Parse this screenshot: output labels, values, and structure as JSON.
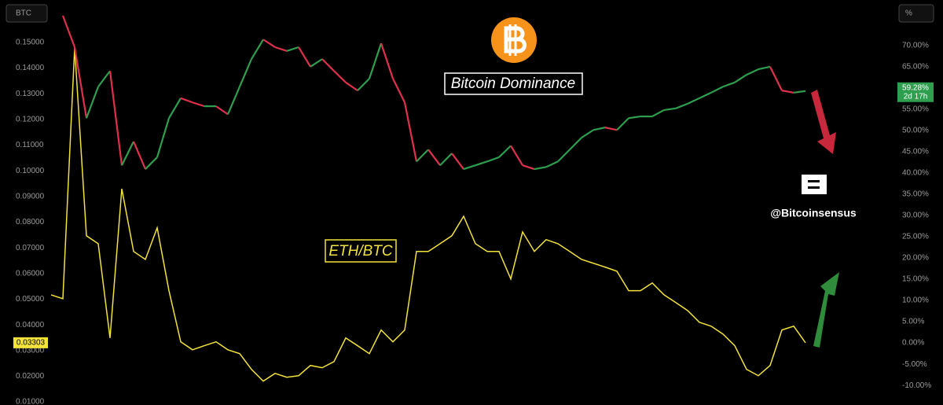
{
  "chart_data": {
    "type": "line",
    "y_unit": "BTC",
    "y2_unit": "%",
    "watermark": "@Bitcoinsensus",
    "categories": [
      null,
      null,
      null,
      null,
      null,
      null,
      null,
      null,
      null,
      null,
      null,
      null,
      null,
      null,
      null,
      null,
      null,
      null,
      null,
      null,
      null,
      null,
      null,
      null,
      null,
      null,
      null,
      null,
      null,
      null,
      null,
      null,
      null,
      null,
      null,
      null,
      null,
      null,
      null,
      null,
      null,
      null,
      null,
      null,
      null,
      null,
      null,
      null,
      null,
      null,
      null,
      null,
      null,
      null,
      null,
      null,
      null,
      null,
      null,
      null,
      null,
      null,
      null,
      null,
      null
    ],
    "series": [
      {
        "name": "ETH/BTC",
        "color": "#f2e23c",
        "values": [
          0.0517,
          0.0502,
          0.148,
          0.0747,
          0.0716,
          0.0349,
          0.093,
          0.0686,
          0.0655,
          0.0778,
          0.0533,
          0.0334,
          0.0303,
          0.0319,
          0.0334,
          0.0303,
          0.0288,
          0.0227,
          0.0181,
          0.0211,
          0.0196,
          0.0202,
          0.0242,
          0.0233,
          0.0257,
          0.0349,
          0.0319,
          0.0288,
          0.038,
          0.0334,
          0.038,
          0.0686,
          0.0686,
          0.0716,
          0.0747,
          0.0823,
          0.0716,
          0.0686,
          0.0686,
          0.0579,
          0.0762,
          0.0686,
          0.0732,
          0.0716,
          0.0686,
          0.0655,
          0.064,
          0.0625,
          0.0609,
          0.0533,
          0.0533,
          0.0563,
          0.0517,
          0.0487,
          0.0456,
          0.041,
          0.0395,
          0.0364,
          0.0319,
          0.0227,
          0.0202,
          0.0242,
          0.038,
          0.0395,
          0.03303
        ]
      },
      {
        "name": "Bitcoin Dominance",
        "axis": "y2",
        "color": "#e0304e",
        "up_color": "#2e9e4f",
        "last_label": "59.28%",
        "countdown": "2d 17h",
        "values": [
          null,
          77.0,
          69.6,
          52.9,
          60.3,
          64.0,
          41.8,
          47.4,
          40.9,
          43.7,
          52.9,
          57.6,
          56.6,
          55.7,
          55.7,
          53.8,
          60.3,
          66.8,
          71.4,
          69.6,
          68.7,
          69.6,
          65.0,
          66.8,
          64.0,
          61.3,
          59.4,
          62.2,
          70.5,
          62.2,
          56.6,
          42.7,
          45.5,
          41.8,
          44.6,
          40.9,
          41.8,
          42.7,
          43.7,
          46.4,
          41.8,
          40.9,
          41.4,
          42.7,
          45.5,
          48.3,
          50.1,
          50.7,
          50.1,
          52.9,
          53.3,
          53.3,
          54.8,
          55.2,
          56.3,
          57.6,
          58.9,
          60.3,
          61.3,
          63.1,
          64.4,
          65.0,
          59.4,
          58.9,
          59.28
        ]
      }
    ],
    "ylim": [
      0.0088,
      0.1665
    ],
    "yticks": [
      {
        "value": 0.01,
        "label": "0.01000"
      },
      {
        "value": 0.02,
        "label": "0.02000"
      },
      {
        "value": 0.03,
        "label": "0.03000"
      },
      {
        "value": 0.04,
        "label": "0.04000"
      },
      {
        "value": 0.05,
        "label": "0.05000"
      },
      {
        "value": 0.06,
        "label": "0.06000"
      },
      {
        "value": 0.07,
        "label": "0.07000"
      },
      {
        "value": 0.08,
        "label": "0.08000"
      },
      {
        "value": 0.09,
        "label": "0.09000"
      },
      {
        "value": 0.1,
        "label": "0.10000"
      },
      {
        "value": 0.11,
        "label": "0.11000"
      },
      {
        "value": 0.12,
        "label": "0.12000"
      },
      {
        "value": 0.13,
        "label": "0.13000"
      },
      {
        "value": 0.14,
        "label": "0.14000"
      },
      {
        "value": 0.15,
        "label": "0.15000"
      }
    ],
    "y2lim": [
      -14.6,
      80.7
    ],
    "y2ticks": [
      {
        "value": -10,
        "label": "-10.00%"
      },
      {
        "value": -5,
        "label": "-5.00%"
      },
      {
        "value": 0,
        "label": "0.00%"
      },
      {
        "value": 5,
        "label": "5.00%"
      },
      {
        "value": 10,
        "label": "10.00%"
      },
      {
        "value": 15,
        "label": "15.00%"
      },
      {
        "value": 20,
        "label": "20.00%"
      },
      {
        "value": 25,
        "label": "25.00%"
      },
      {
        "value": 30,
        "label": "30.00%"
      },
      {
        "value": 35,
        "label": "35.00%"
      },
      {
        "value": 40,
        "label": "40.00%"
      },
      {
        "value": 45,
        "label": "45.00%"
      },
      {
        "value": 50,
        "label": "50.00%"
      },
      {
        "value": 55,
        "label": "55.00%"
      },
      {
        "value": 60,
        "label": "60.00%"
      },
      {
        "value": 65,
        "label": "65.00%"
      },
      {
        "value": 70,
        "label": "70.00%"
      }
    ],
    "grid": false
  }
}
